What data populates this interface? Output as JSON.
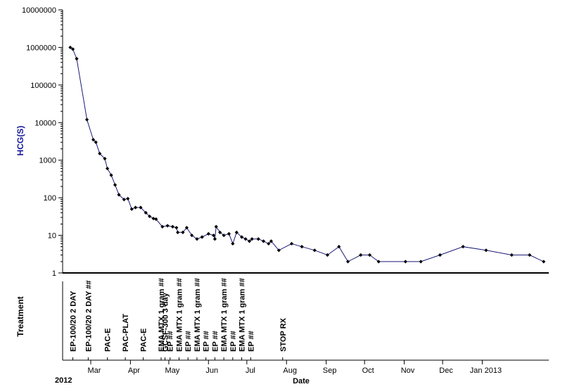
{
  "chart_data": {
    "type": "line",
    "ylabel": "HCG(S)",
    "xlabel": "Date",
    "yscale": "log",
    "ylim": [
      1,
      10000000
    ],
    "ytick_labels": [
      "1",
      "10",
      "100",
      "1000",
      "10000",
      "100000",
      "1000000",
      "10000000"
    ],
    "xlim": [
      "2012-02-08",
      "2013-02-22"
    ],
    "year_labels": [
      {
        "label": "2012",
        "date": "2012-02-08"
      },
      {
        "label": "2013",
        "date": "2013-01-10"
      }
    ],
    "month_ticks": [
      {
        "label": "Mar",
        "date": "2012-03-01"
      },
      {
        "label": "Apr",
        "date": "2012-04-01"
      },
      {
        "label": "May",
        "date": "2012-05-01"
      },
      {
        "label": "Jun",
        "date": "2012-06-01"
      },
      {
        "label": "Jul",
        "date": "2012-07-01"
      },
      {
        "label": "Aug",
        "date": "2012-08-01"
      },
      {
        "label": "Sep",
        "date": "2012-09-01"
      },
      {
        "label": "Oct",
        "date": "2012-10-01"
      },
      {
        "label": "Nov",
        "date": "2012-11-01"
      },
      {
        "label": "Dec",
        "date": "2012-12-01"
      },
      {
        "label": "Jan 2013",
        "date": "2013-01-01"
      }
    ],
    "series": [
      {
        "color": "#1a1a7a",
        "points": [
          {
            "x": "2012-02-14",
            "y": 1000000
          },
          {
            "x": "2012-02-16",
            "y": 900000
          },
          {
            "x": "2012-02-19",
            "y": 500000
          },
          {
            "x": "2012-02-27",
            "y": 12000
          },
          {
            "x": "2012-03-03",
            "y": 3500
          },
          {
            "x": "2012-03-05",
            "y": 3000
          },
          {
            "x": "2012-03-08",
            "y": 1500
          },
          {
            "x": "2012-03-12",
            "y": 1100
          },
          {
            "x": "2012-03-14",
            "y": 600
          },
          {
            "x": "2012-03-17",
            "y": 400
          },
          {
            "x": "2012-03-20",
            "y": 220
          },
          {
            "x": "2012-03-23",
            "y": 120
          },
          {
            "x": "2012-03-27",
            "y": 90
          },
          {
            "x": "2012-03-30",
            "y": 95
          },
          {
            "x": "2012-04-02",
            "y": 50
          },
          {
            "x": "2012-04-05",
            "y": 55
          },
          {
            "x": "2012-04-09",
            "y": 55
          },
          {
            "x": "2012-04-13",
            "y": 40
          },
          {
            "x": "2012-04-16",
            "y": 32
          },
          {
            "x": "2012-04-19",
            "y": 28
          },
          {
            "x": "2012-04-21",
            "y": 27
          },
          {
            "x": "2012-04-26",
            "y": 17
          },
          {
            "x": "2012-04-30",
            "y": 18
          },
          {
            "x": "2012-05-04",
            "y": 17
          },
          {
            "x": "2012-05-07",
            "y": 16
          },
          {
            "x": "2012-05-08",
            "y": 12
          },
          {
            "x": "2012-05-12",
            "y": 12
          },
          {
            "x": "2012-05-15",
            "y": 16
          },
          {
            "x": "2012-05-19",
            "y": 10
          },
          {
            "x": "2012-05-23",
            "y": 8
          },
          {
            "x": "2012-05-27",
            "y": 9
          },
          {
            "x": "2012-06-01",
            "y": 11
          },
          {
            "x": "2012-06-05",
            "y": 10
          },
          {
            "x": "2012-06-06",
            "y": 8
          },
          {
            "x": "2012-06-07",
            "y": 17
          },
          {
            "x": "2012-06-10",
            "y": 12
          },
          {
            "x": "2012-06-13",
            "y": 10
          },
          {
            "x": "2012-06-17",
            "y": 11
          },
          {
            "x": "2012-06-20",
            "y": 6
          },
          {
            "x": "2012-06-23",
            "y": 12
          },
          {
            "x": "2012-06-27",
            "y": 9
          },
          {
            "x": "2012-06-30",
            "y": 8
          },
          {
            "x": "2012-07-03",
            "y": 7
          },
          {
            "x": "2012-07-05",
            "y": 8
          },
          {
            "x": "2012-07-10",
            "y": 8
          },
          {
            "x": "2012-07-14",
            "y": 7
          },
          {
            "x": "2012-07-18",
            "y": 6
          },
          {
            "x": "2012-07-20",
            "y": 7
          },
          {
            "x": "2012-07-26",
            "y": 4
          },
          {
            "x": "2012-08-05",
            "y": 6
          },
          {
            "x": "2012-08-13",
            "y": 5
          },
          {
            "x": "2012-08-23",
            "y": 4
          },
          {
            "x": "2012-09-02",
            "y": 3
          },
          {
            "x": "2012-09-11",
            "y": 5
          },
          {
            "x": "2012-09-18",
            "y": 2
          },
          {
            "x": "2012-09-28",
            "y": 3
          },
          {
            "x": "2012-10-05",
            "y": 3
          },
          {
            "x": "2012-10-12",
            "y": 2
          },
          {
            "x": "2012-11-02",
            "y": 2
          },
          {
            "x": "2012-11-14",
            "y": 2
          },
          {
            "x": "2012-11-29",
            "y": 3
          },
          {
            "x": "2012-12-17",
            "y": 5
          },
          {
            "x": "2013-01-04",
            "y": 4
          },
          {
            "x": "2013-01-24",
            "y": 3
          },
          {
            "x": "2013-02-07",
            "y": 3
          },
          {
            "x": "2013-02-18",
            "y": 2
          }
        ]
      }
    ],
    "treatment_label": "Treatment",
    "treatments": [
      {
        "label": "EP-100/20 2 DAY",
        "date": "2012-02-16"
      },
      {
        "label": "EP-100/20 2 DAY ##",
        "date": "2012-02-28"
      },
      {
        "label": "PAC-E",
        "date": "2012-03-14"
      },
      {
        "label": "PAC-PLAT",
        "date": "2012-03-28"
      },
      {
        "label": "PAC-E",
        "date": "2012-04-11"
      },
      {
        "label": "EMA MTX 1 gram ##",
        "date": "2012-04-25"
      },
      {
        "label": "GCSF-300 3 day",
        "date": "2012-04-28"
      },
      {
        "label": "EP ##",
        "date": "2012-05-02"
      },
      {
        "label": "EMA MTX 1 gram ##",
        "date": "2012-05-09"
      },
      {
        "label": "EP ##",
        "date": "2012-05-16"
      },
      {
        "label": "EMA MTX 1 gram ##",
        "date": "2012-05-23"
      },
      {
        "label": "EP ##",
        "date": "2012-05-30"
      },
      {
        "label": "EP ##",
        "date": "2012-06-06"
      },
      {
        "label": "EMA MTX 1 gram ##",
        "date": "2012-06-13"
      },
      {
        "label": "EP ##",
        "date": "2012-06-20"
      },
      {
        "label": "EMA MTX 1 gram ##",
        "date": "2012-06-27"
      },
      {
        "label": "EP ##",
        "date": "2012-07-04"
      },
      {
        "label": "STOP RX",
        "date": "2012-07-29"
      }
    ]
  }
}
